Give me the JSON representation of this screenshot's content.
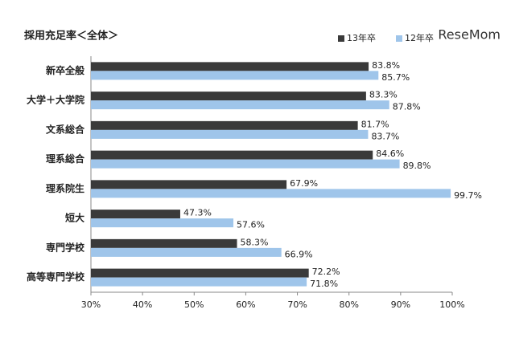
{
  "chart_data": {
    "type": "hbar",
    "title": "採用充足率＜全体＞",
    "watermark": "ReseMom",
    "categories": [
      "新卒全般",
      "大学＋大学院",
      "文系総合",
      "理系総合",
      "理系院生",
      "短大",
      "専門学校",
      "高等専門学校"
    ],
    "series": [
      {
        "name": "13年卒",
        "color": "#3a3a3a",
        "values": [
          83.8,
          83.3,
          81.7,
          84.6,
          67.9,
          47.3,
          58.3,
          72.2
        ],
        "value_labels": [
          "83.8%",
          "83.3%",
          "81.7%",
          "84.6%",
          "67.9%",
          "47.3%",
          "58.3%",
          "72.2%"
        ]
      },
      {
        "name": "12年卒",
        "color": "#9fc5ea",
        "values": [
          85.7,
          87.8,
          83.7,
          89.8,
          99.7,
          57.6,
          66.9,
          71.8
        ],
        "value_labels": [
          "85.7%",
          "87.8%",
          "83.7%",
          "89.8%",
          "99.7%",
          "57.6%",
          "66.9%",
          "71.8%"
        ]
      }
    ],
    "xlim": [
      30,
      100
    ],
    "xticks": [
      {
        "value": 30,
        "label": "30%"
      },
      {
        "value": 40,
        "label": "40%"
      },
      {
        "value": 50,
        "label": "50%"
      },
      {
        "value": 60,
        "label": "60%"
      },
      {
        "value": 70,
        "label": "70%"
      },
      {
        "value": 80,
        "label": "80%"
      },
      {
        "value": 90,
        "label": "90%"
      },
      {
        "value": 100,
        "label": "100%"
      }
    ],
    "legend": "top-right"
  }
}
